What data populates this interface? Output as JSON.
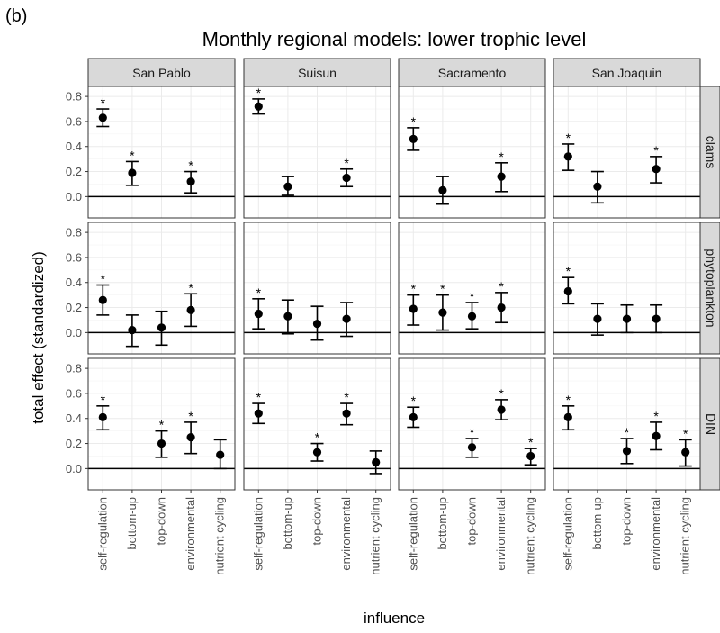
{
  "figure": {
    "tag": "(b)",
    "title": "Monthly regional models: lower trophic level",
    "xlabel": "influence",
    "ylabel": "total effect (standardized)"
  },
  "chart_data": {
    "type": "scatter",
    "title": "Monthly regional models: lower trophic level",
    "xlabel": "influence",
    "ylabel": "total effect (standardized)",
    "ylim": [
      -0.17,
      0.88
    ],
    "yticks": [
      0.0,
      0.2,
      0.4,
      0.6,
      0.8
    ],
    "ytick_labels": [
      "0.0",
      "0.2",
      "0.4",
      "0.6",
      "0.8"
    ],
    "grid": true,
    "reference_line": 0,
    "categories": [
      "self-regulation",
      "bottom-up",
      "top-down",
      "environmental",
      "nutrient cycling"
    ],
    "columns": [
      "San Pablo",
      "Suisun",
      "Sacramento",
      "San Joaquin"
    ],
    "rows": [
      "clams",
      "phytoplankton",
      "DIN"
    ],
    "facets": [
      {
        "region": "San Pablo",
        "response": "clams",
        "points": [
          {
            "x": "self-regulation",
            "y": 0.63,
            "low": 0.56,
            "high": 0.7,
            "sig": "*"
          },
          {
            "x": "bottom-up",
            "y": 0.19,
            "low": 0.09,
            "high": 0.28,
            "sig": "*"
          },
          {
            "x": "environmental",
            "y": 0.12,
            "low": 0.03,
            "high": 0.2,
            "sig": "*"
          }
        ]
      },
      {
        "region": "Suisun",
        "response": "clams",
        "points": [
          {
            "x": "self-regulation",
            "y": 0.72,
            "low": 0.66,
            "high": 0.78,
            "sig": "*"
          },
          {
            "x": "bottom-up",
            "y": 0.08,
            "low": 0.01,
            "high": 0.16,
            "sig": ""
          },
          {
            "x": "environmental",
            "y": 0.15,
            "low": 0.08,
            "high": 0.22,
            "sig": "*"
          }
        ]
      },
      {
        "region": "Sacramento",
        "response": "clams",
        "points": [
          {
            "x": "self-regulation",
            "y": 0.46,
            "low": 0.37,
            "high": 0.55,
            "sig": "*"
          },
          {
            "x": "bottom-up",
            "y": 0.05,
            "low": -0.06,
            "high": 0.16,
            "sig": ""
          },
          {
            "x": "environmental",
            "y": 0.16,
            "low": 0.04,
            "high": 0.27,
            "sig": "*"
          }
        ]
      },
      {
        "region": "San Joaquin",
        "response": "clams",
        "points": [
          {
            "x": "self-regulation",
            "y": 0.32,
            "low": 0.21,
            "high": 0.42,
            "sig": "*"
          },
          {
            "x": "bottom-up",
            "y": 0.08,
            "low": -0.05,
            "high": 0.2,
            "sig": ""
          },
          {
            "x": "environmental",
            "y": 0.22,
            "low": 0.11,
            "high": 0.32,
            "sig": "*"
          }
        ]
      },
      {
        "region": "San Pablo",
        "response": "phytoplankton",
        "points": [
          {
            "x": "self-regulation",
            "y": 0.26,
            "low": 0.14,
            "high": 0.38,
            "sig": "*"
          },
          {
            "x": "bottom-up",
            "y": 0.02,
            "low": -0.11,
            "high": 0.14,
            "sig": ""
          },
          {
            "x": "top-down",
            "y": 0.04,
            "low": -0.1,
            "high": 0.17,
            "sig": ""
          },
          {
            "x": "environmental",
            "y": 0.18,
            "low": 0.05,
            "high": 0.31,
            "sig": "*"
          }
        ]
      },
      {
        "region": "Suisun",
        "response": "phytoplankton",
        "points": [
          {
            "x": "self-regulation",
            "y": 0.15,
            "low": 0.03,
            "high": 0.27,
            "sig": "*"
          },
          {
            "x": "bottom-up",
            "y": 0.13,
            "low": -0.01,
            "high": 0.26,
            "sig": ""
          },
          {
            "x": "top-down",
            "y": 0.07,
            "low": -0.06,
            "high": 0.21,
            "sig": ""
          },
          {
            "x": "environmental",
            "y": 0.11,
            "low": -0.03,
            "high": 0.24,
            "sig": ""
          }
        ]
      },
      {
        "region": "Sacramento",
        "response": "phytoplankton",
        "points": [
          {
            "x": "self-regulation",
            "y": 0.19,
            "low": 0.06,
            "high": 0.3,
            "sig": "*"
          },
          {
            "x": "bottom-up",
            "y": 0.16,
            "low": 0.02,
            "high": 0.3,
            "sig": "*"
          },
          {
            "x": "top-down",
            "y": 0.13,
            "low": 0.03,
            "high": 0.24,
            "sig": "*"
          },
          {
            "x": "environmental",
            "y": 0.2,
            "low": 0.08,
            "high": 0.32,
            "sig": "*"
          }
        ]
      },
      {
        "region": "San Joaquin",
        "response": "phytoplankton",
        "points": [
          {
            "x": "self-regulation",
            "y": 0.33,
            "low": 0.23,
            "high": 0.44,
            "sig": "*"
          },
          {
            "x": "bottom-up",
            "y": 0.11,
            "low": -0.02,
            "high": 0.23,
            "sig": ""
          },
          {
            "x": "top-down",
            "y": 0.11,
            "low": 0.0,
            "high": 0.22,
            "sig": ""
          },
          {
            "x": "environmental",
            "y": 0.11,
            "low": 0.0,
            "high": 0.22,
            "sig": ""
          }
        ]
      },
      {
        "region": "San Pablo",
        "response": "DIN",
        "points": [
          {
            "x": "self-regulation",
            "y": 0.41,
            "low": 0.31,
            "high": 0.5,
            "sig": "*"
          },
          {
            "x": "top-down",
            "y": 0.2,
            "low": 0.09,
            "high": 0.3,
            "sig": "*"
          },
          {
            "x": "environmental",
            "y": 0.25,
            "low": 0.12,
            "high": 0.37,
            "sig": "*"
          },
          {
            "x": "nutrient cycling",
            "y": 0.11,
            "low": 0.0,
            "high": 0.23,
            "sig": ""
          }
        ]
      },
      {
        "region": "Suisun",
        "response": "DIN",
        "points": [
          {
            "x": "self-regulation",
            "y": 0.44,
            "low": 0.36,
            "high": 0.52,
            "sig": "*"
          },
          {
            "x": "top-down",
            "y": 0.13,
            "low": 0.06,
            "high": 0.2,
            "sig": "*"
          },
          {
            "x": "environmental",
            "y": 0.44,
            "low": 0.35,
            "high": 0.52,
            "sig": "*"
          },
          {
            "x": "nutrient cycling",
            "y": 0.05,
            "low": -0.04,
            "high": 0.14,
            "sig": ""
          }
        ]
      },
      {
        "region": "Sacramento",
        "response": "DIN",
        "points": [
          {
            "x": "self-regulation",
            "y": 0.41,
            "low": 0.33,
            "high": 0.49,
            "sig": "*"
          },
          {
            "x": "top-down",
            "y": 0.17,
            "low": 0.09,
            "high": 0.24,
            "sig": "*"
          },
          {
            "x": "environmental",
            "y": 0.47,
            "low": 0.39,
            "high": 0.55,
            "sig": "*"
          },
          {
            "x": "nutrient cycling",
            "y": 0.1,
            "low": 0.03,
            "high": 0.16,
            "sig": "*"
          }
        ]
      },
      {
        "region": "San Joaquin",
        "response": "DIN",
        "points": [
          {
            "x": "self-regulation",
            "y": 0.41,
            "low": 0.31,
            "high": 0.5,
            "sig": "*"
          },
          {
            "x": "top-down",
            "y": 0.14,
            "low": 0.04,
            "high": 0.24,
            "sig": "*"
          },
          {
            "x": "environmental",
            "y": 0.26,
            "low": 0.15,
            "high": 0.37,
            "sig": "*"
          },
          {
            "x": "nutrient cycling",
            "y": 0.13,
            "low": 0.02,
            "high": 0.23,
            "sig": "*"
          }
        ]
      }
    ]
  }
}
